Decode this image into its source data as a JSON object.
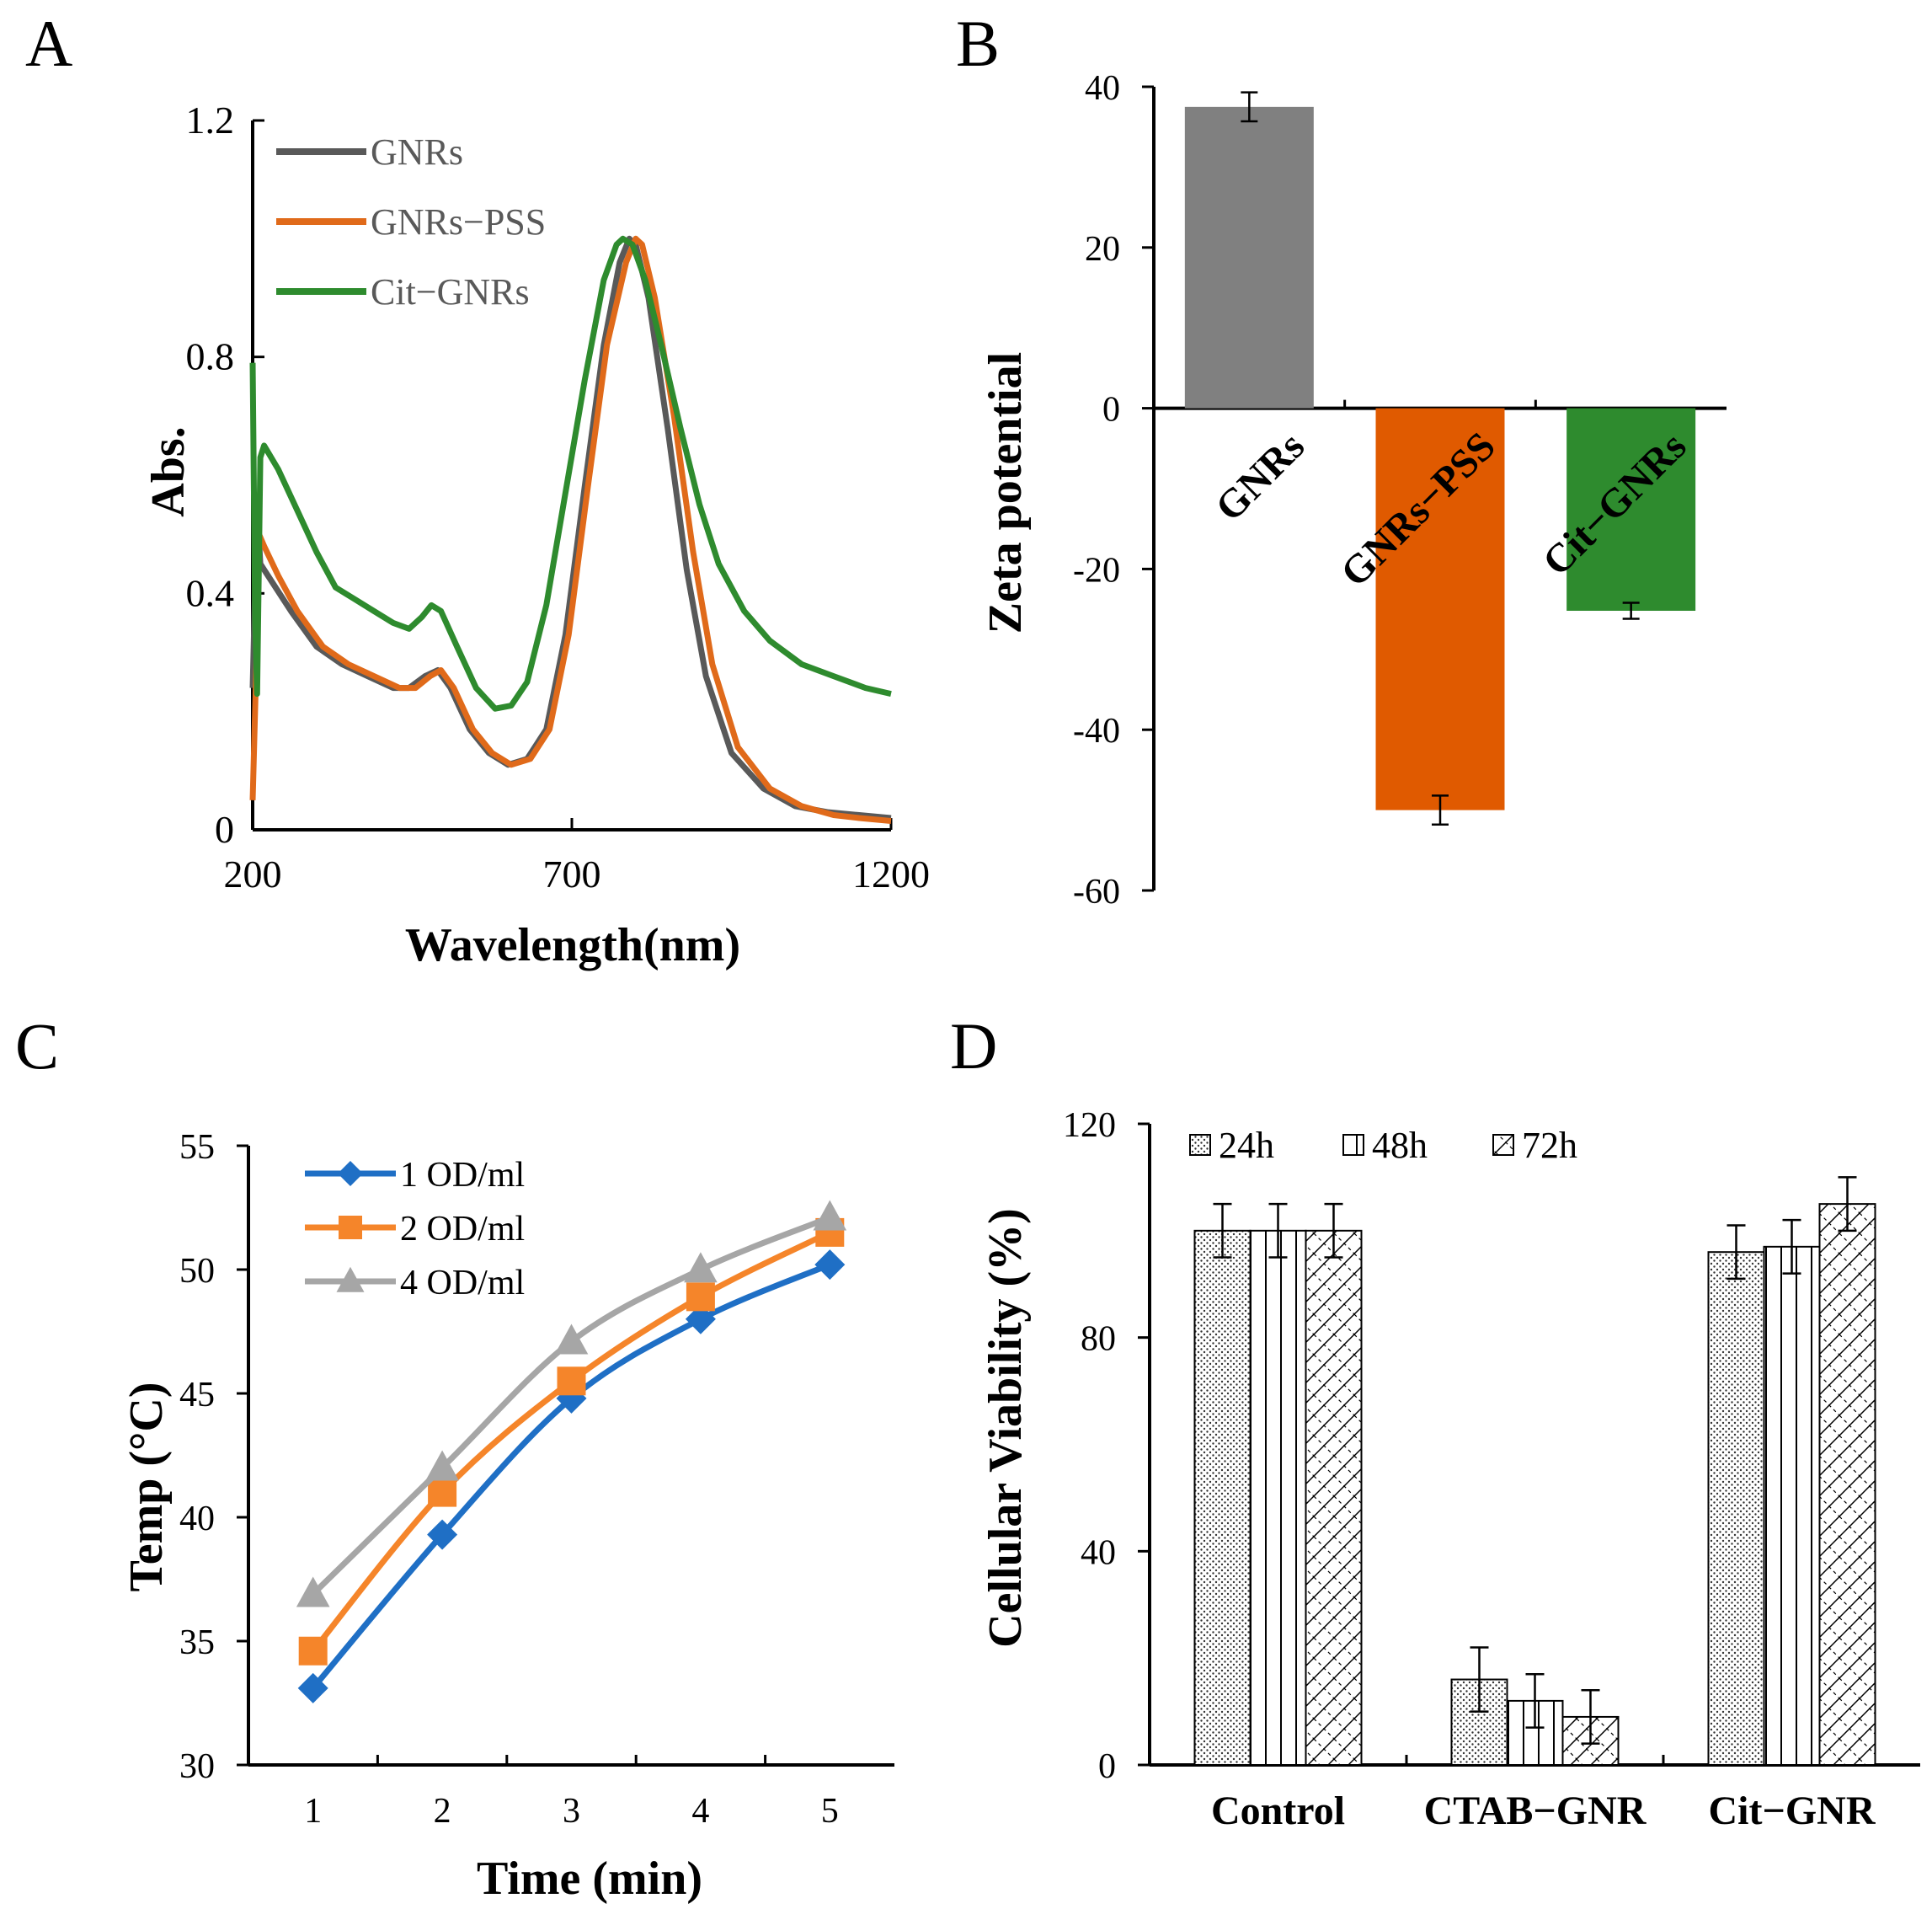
{
  "chart_data": [
    {
      "panel": "A",
      "type": "line",
      "xlabel": "Wavelength(nm)",
      "ylabel": "Abs.",
      "xlim": [
        200,
        1200
      ],
      "ylim": [
        0,
        1.2
      ],
      "xticks": [
        "200",
        "700",
        "1200"
      ],
      "yticks": [
        "0",
        "0.4",
        "0.8",
        "1.2"
      ],
      "legend_position": "top-left",
      "series": [
        {
          "name": "GNRs",
          "color": "#595959",
          "points": [
            [
              200,
              0.24
            ],
            [
              207,
              0.55
            ],
            [
              212,
              0.45
            ],
            [
              230,
              0.42
            ],
            [
              260,
              0.37
            ],
            [
              300,
              0.31
            ],
            [
              340,
              0.28
            ],
            [
              380,
              0.26
            ],
            [
              420,
              0.24
            ],
            [
              445,
              0.24
            ],
            [
              470,
              0.26
            ],
            [
              490,
              0.27
            ],
            [
              510,
              0.24
            ],
            [
              540,
              0.17
            ],
            [
              570,
              0.13
            ],
            [
              600,
              0.11
            ],
            [
              630,
              0.12
            ],
            [
              660,
              0.17
            ],
            [
              690,
              0.33
            ],
            [
              720,
              0.58
            ],
            [
              750,
              0.82
            ],
            [
              775,
              0.96
            ],
            [
              790,
              1.0
            ],
            [
              800,
              0.99
            ],
            [
              820,
              0.9
            ],
            [
              850,
              0.68
            ],
            [
              880,
              0.44
            ],
            [
              910,
              0.26
            ],
            [
              950,
              0.13
            ],
            [
              1000,
              0.07
            ],
            [
              1050,
              0.04
            ],
            [
              1100,
              0.03
            ],
            [
              1150,
              0.025
            ],
            [
              1200,
              0.02
            ]
          ]
        },
        {
          "name": "GNRs−PSS",
          "color": "#E06A1A",
          "points": [
            [
              200,
              0.05
            ],
            [
              205,
              0.25
            ],
            [
              210,
              0.5
            ],
            [
              218,
              0.48
            ],
            [
              240,
              0.43
            ],
            [
              270,
              0.37
            ],
            [
              310,
              0.31
            ],
            [
              350,
              0.28
            ],
            [
              390,
              0.26
            ],
            [
              430,
              0.24
            ],
            [
              455,
              0.24
            ],
            [
              478,
              0.26
            ],
            [
              495,
              0.27
            ],
            [
              515,
              0.24
            ],
            [
              545,
              0.17
            ],
            [
              575,
              0.13
            ],
            [
              605,
              0.11
            ],
            [
              635,
              0.12
            ],
            [
              665,
              0.17
            ],
            [
              695,
              0.33
            ],
            [
              725,
              0.58
            ],
            [
              755,
              0.82
            ],
            [
              785,
              0.96
            ],
            [
              800,
              1.0
            ],
            [
              810,
              0.99
            ],
            [
              830,
              0.9
            ],
            [
              860,
              0.7
            ],
            [
              890,
              0.47
            ],
            [
              920,
              0.28
            ],
            [
              960,
              0.14
            ],
            [
              1010,
              0.07
            ],
            [
              1060,
              0.04
            ],
            [
              1110,
              0.025
            ],
            [
              1150,
              0.02
            ],
            [
              1200,
              0.015
            ]
          ]
        },
        {
          "name": "Cit−GNRs",
          "color": "#2E8B2E",
          "points": [
            [
              200,
              0.79
            ],
            [
              204,
              0.35
            ],
            [
              207,
              0.23
            ],
            [
              212,
              0.63
            ],
            [
              218,
              0.65
            ],
            [
              240,
              0.61
            ],
            [
              270,
              0.54
            ],
            [
              300,
              0.47
            ],
            [
              330,
              0.41
            ],
            [
              360,
              0.39
            ],
            [
              390,
              0.37
            ],
            [
              420,
              0.35
            ],
            [
              445,
              0.34
            ],
            [
              465,
              0.36
            ],
            [
              480,
              0.38
            ],
            [
              495,
              0.37
            ],
            [
              520,
              0.31
            ],
            [
              550,
              0.24
            ],
            [
              580,
              0.205
            ],
            [
              605,
              0.21
            ],
            [
              630,
              0.25
            ],
            [
              660,
              0.38
            ],
            [
              690,
              0.57
            ],
            [
              720,
              0.76
            ],
            [
              750,
              0.93
            ],
            [
              770,
              0.99
            ],
            [
              780,
              1.0
            ],
            [
              795,
              0.99
            ],
            [
              815,
              0.93
            ],
            [
              840,
              0.82
            ],
            [
              870,
              0.68
            ],
            [
              900,
              0.55
            ],
            [
              930,
              0.45
            ],
            [
              970,
              0.37
            ],
            [
              1010,
              0.32
            ],
            [
              1060,
              0.28
            ],
            [
              1110,
              0.26
            ],
            [
              1160,
              0.24
            ],
            [
              1200,
              0.23
            ]
          ]
        }
      ]
    },
    {
      "panel": "B",
      "type": "bar",
      "ylabel": "Zeta potential",
      "ylim": [
        -60,
        40
      ],
      "yticks": [
        "40",
        "20",
        "0",
        "-20",
        "-40",
        "-60"
      ],
      "categories": [
        "GNRs",
        "GNRs−PSS",
        "Cit−GNRs"
      ],
      "values": [
        37.5,
        -50,
        -25.2
      ],
      "errors": [
        1.8,
        1.8,
        1.0
      ],
      "colors": [
        "#808080",
        "#E05A00",
        "#2E8B2E"
      ]
    },
    {
      "panel": "C",
      "type": "line",
      "xlabel": "Time (min)",
      "ylabel": "Temp (°C)",
      "xlim": [
        0.5,
        5.5
      ],
      "ylim": [
        30,
        55
      ],
      "xticks": [
        "1",
        "2",
        "3",
        "4",
        "5"
      ],
      "yticks": [
        "30",
        "35",
        "40",
        "45",
        "50",
        "55"
      ],
      "x": [
        1,
        2,
        3,
        4,
        5
      ],
      "legend_position": "top-left",
      "series": [
        {
          "name": "1 OD/ml",
          "color": "#1F6FC5",
          "marker": "diamond",
          "values": [
            33.1,
            39.3,
            44.8,
            48.0,
            50.2
          ]
        },
        {
          "name": "2 OD/ml",
          "color": "#F5852A",
          "marker": "square",
          "values": [
            34.6,
            41.0,
            45.5,
            48.9,
            51.5
          ]
        },
        {
          "name": "4 OD/ml",
          "color": "#A6A6A6",
          "marker": "triangle",
          "values": [
            36.9,
            42.0,
            47.1,
            50.0,
            52.1
          ]
        }
      ]
    },
    {
      "panel": "D",
      "type": "bar",
      "ylabel": "Cellular Viability (%)",
      "ylim": [
        0,
        120
      ],
      "yticks": [
        "0",
        "40",
        "80",
        "120"
      ],
      "categories": [
        "Control",
        "CTAB−GNR",
        "Cit−GNR"
      ],
      "legend_position": "top",
      "series": [
        {
          "name": "24h",
          "pattern": "dots",
          "values": [
            100,
            16,
            96
          ],
          "errors": [
            5,
            6,
            5
          ]
        },
        {
          "name": "48h",
          "pattern": "vlines",
          "values": [
            100,
            12,
            97
          ],
          "errors": [
            5,
            5,
            5
          ]
        },
        {
          "name": "72h",
          "pattern": "hatch",
          "values": [
            100,
            9,
            105
          ],
          "errors": [
            5,
            5,
            5
          ]
        }
      ]
    }
  ]
}
